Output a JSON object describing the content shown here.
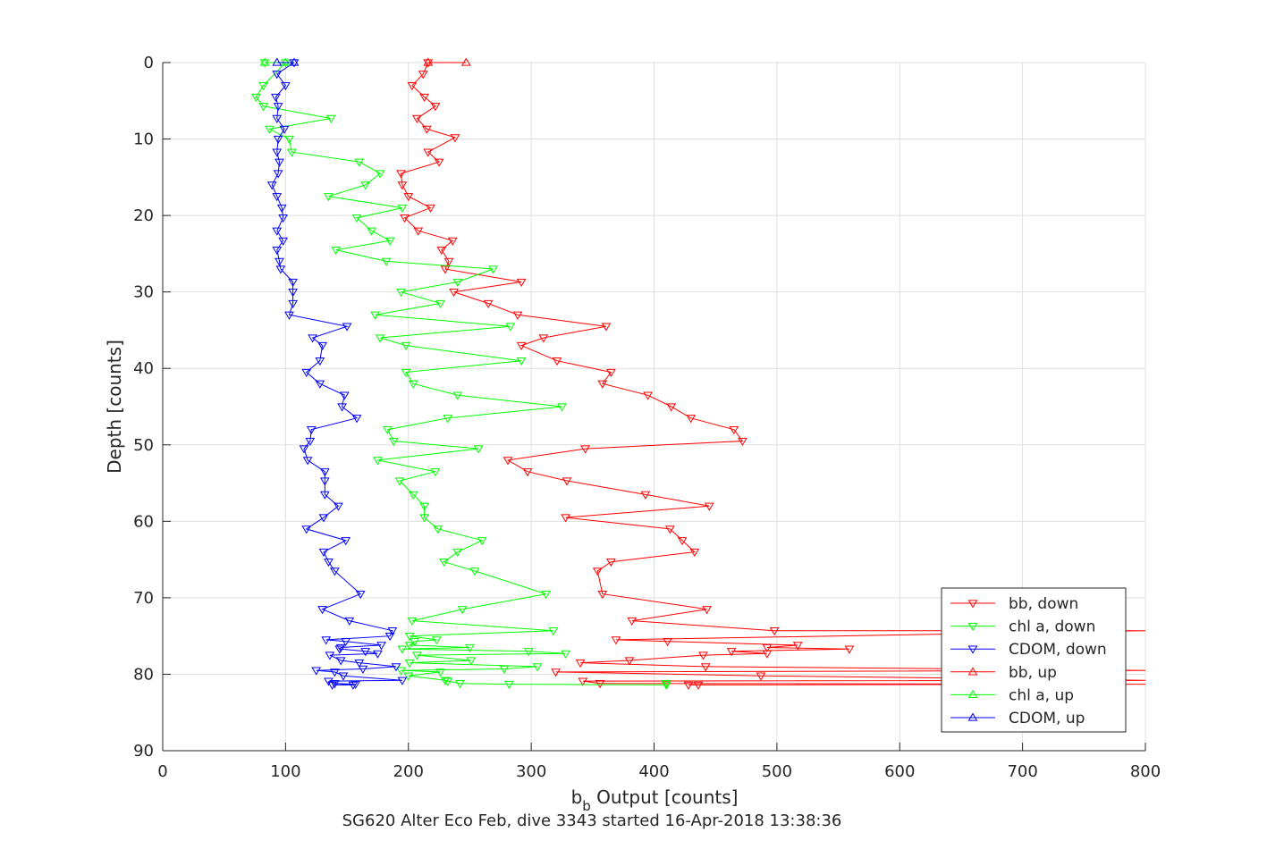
{
  "chart_data": {
    "type": "line",
    "xlabel_main": "b",
    "xlabel_sub": "b",
    "xlabel_rest": " Output [counts]",
    "ylabel": "Depth [counts]",
    "caption": "SG620 Alter Eco Feb, dive 3343 started 16-Apr-2018 13:38:36",
    "xlim": [
      0,
      800
    ],
    "ylim": [
      0,
      90
    ],
    "y_reversed": true,
    "xticks": [
      "0",
      "100",
      "200",
      "300",
      "400",
      "500",
      "600",
      "700",
      "800"
    ],
    "yticks": [
      "0",
      "10",
      "20",
      "30",
      "40",
      "50",
      "60",
      "70",
      "80",
      "90"
    ],
    "grid": true,
    "legend_position": "bottom-right",
    "series": [
      {
        "name": "bb, down",
        "color": "#ff0000",
        "marker": "triangle-down",
        "points": [
          [
            216,
            0
          ],
          [
            212,
            1.5
          ],
          [
            203,
            3
          ],
          [
            213,
            4.5
          ],
          [
            222,
            5.7
          ],
          [
            207,
            7.3
          ],
          [
            215,
            8.7
          ],
          [
            238,
            9.8
          ],
          [
            216,
            11.7
          ],
          [
            225,
            13
          ],
          [
            194,
            14.5
          ],
          [
            195,
            16
          ],
          [
            200,
            17.5
          ],
          [
            218,
            19
          ],
          [
            197,
            20.3
          ],
          [
            208,
            22
          ],
          [
            236,
            23.3
          ],
          [
            227,
            24.5
          ],
          [
            233,
            26
          ],
          [
            230,
            27
          ],
          [
            292,
            28.7
          ],
          [
            237,
            30
          ],
          [
            265,
            31.5
          ],
          [
            289,
            33
          ],
          [
            361,
            34.5
          ],
          [
            310,
            36
          ],
          [
            292,
            37
          ],
          [
            321,
            39
          ],
          [
            365,
            40.5
          ],
          [
            358,
            42
          ],
          [
            395,
            43.5
          ],
          [
            414,
            45
          ],
          [
            430,
            46.5
          ],
          [
            465,
            48
          ],
          [
            472,
            49.5
          ],
          [
            344,
            50.5
          ],
          [
            281,
            52
          ],
          [
            297,
            53.5
          ],
          [
            329,
            54.7
          ],
          [
            393,
            56.5
          ],
          [
            445,
            58
          ],
          [
            328,
            59.5
          ],
          [
            413,
            61
          ],
          [
            423,
            62.5
          ],
          [
            433,
            64
          ],
          [
            365,
            65.3
          ],
          [
            354,
            66.5
          ],
          [
            358,
            69.5
          ],
          [
            443,
            71.5
          ],
          [
            382,
            73
          ],
          [
            498,
            74.3
          ],
          [
            800,
            74.3
          ],
          [
            369,
            75.5
          ],
          [
            411,
            75.7
          ],
          [
            517,
            76.2
          ],
          [
            492,
            76.5
          ],
          [
            559,
            76.7
          ],
          [
            463,
            77
          ],
          [
            492,
            77.3
          ],
          [
            440,
            77.5
          ],
          [
            380,
            78.2
          ],
          [
            340,
            78.5
          ],
          [
            442,
            79
          ],
          [
            800,
            79.5
          ],
          [
            320,
            79.7
          ],
          [
            487,
            80.2
          ],
          [
            800,
            80.8
          ],
          [
            342,
            80.9
          ],
          [
            356,
            81.2
          ],
          [
            800,
            81.3
          ],
          [
            436,
            81.4
          ],
          [
            428,
            81.4
          ]
        ]
      },
      {
        "name": "chl a, down",
        "color": "#00ff00",
        "marker": "triangle-down",
        "points": [
          [
            83,
            0
          ],
          [
            100,
            0
          ],
          [
            82,
            3
          ],
          [
            76,
            4.5
          ],
          [
            82,
            5.7
          ],
          [
            137,
            7.3
          ],
          [
            87,
            8.7
          ],
          [
            103,
            10
          ],
          [
            105,
            11.7
          ],
          [
            160,
            13
          ],
          [
            177,
            14.5
          ],
          [
            165,
            16
          ],
          [
            135,
            17.5
          ],
          [
            195,
            19
          ],
          [
            158,
            20.3
          ],
          [
            170,
            22
          ],
          [
            185,
            23.3
          ],
          [
            141,
            24.5
          ],
          [
            182,
            26
          ],
          [
            269,
            27
          ],
          [
            240,
            28.7
          ],
          [
            194,
            30
          ],
          [
            226,
            31.5
          ],
          [
            173,
            33
          ],
          [
            283,
            34.5
          ],
          [
            177,
            36
          ],
          [
            198,
            37
          ],
          [
            292,
            39
          ],
          [
            198,
            40.5
          ],
          [
            204,
            42
          ],
          [
            240,
            43.5
          ],
          [
            325,
            45
          ],
          [
            232,
            46.5
          ],
          [
            183,
            48
          ],
          [
            188,
            49.5
          ],
          [
            257,
            50.5
          ],
          [
            175,
            52
          ],
          [
            222,
            53.5
          ],
          [
            193,
            54.7
          ],
          [
            204,
            56.5
          ],
          [
            213,
            58
          ],
          [
            213,
            59.5
          ],
          [
            224,
            61
          ],
          [
            260,
            62.5
          ],
          [
            240,
            64
          ],
          [
            229,
            65.3
          ],
          [
            254,
            66.5
          ],
          [
            312,
            69.5
          ],
          [
            244,
            71.5
          ],
          [
            203,
            73
          ],
          [
            318,
            74.3
          ],
          [
            201,
            75
          ],
          [
            223,
            75.5
          ],
          [
            205,
            75.7
          ],
          [
            201,
            76.2
          ],
          [
            250,
            76.5
          ],
          [
            195,
            76.7
          ],
          [
            298,
            77
          ],
          [
            328,
            77.3
          ],
          [
            207,
            77.5
          ],
          [
            251,
            78.2
          ],
          [
            201,
            78.5
          ],
          [
            305,
            79
          ],
          [
            278,
            79.3
          ],
          [
            194,
            79.5
          ],
          [
            226,
            79.7
          ],
          [
            200,
            80.2
          ],
          [
            230,
            80.8
          ],
          [
            232,
            80.9
          ],
          [
            242,
            81.2
          ],
          [
            282,
            81.3
          ],
          [
            410,
            81.4
          ],
          [
            410,
            81.2
          ]
        ]
      },
      {
        "name": "CDOM, down",
        "color": "#0000ff",
        "marker": "triangle-down",
        "points": [
          [
            107,
            0
          ],
          [
            93,
            1.5
          ],
          [
            100,
            3
          ],
          [
            92,
            4.5
          ],
          [
            94,
            5.7
          ],
          [
            93,
            7.3
          ],
          [
            99,
            8.7
          ],
          [
            94,
            10
          ],
          [
            93,
            11.7
          ],
          [
            95,
            13
          ],
          [
            94,
            14.5
          ],
          [
            89,
            16
          ],
          [
            93,
            17.5
          ],
          [
            97,
            19
          ],
          [
            98,
            20.3
          ],
          [
            93,
            22
          ],
          [
            98,
            23.3
          ],
          [
            93,
            24.5
          ],
          [
            95,
            26
          ],
          [
            96,
            27
          ],
          [
            106,
            28.7
          ],
          [
            106,
            30
          ],
          [
            106,
            31.5
          ],
          [
            103,
            33
          ],
          [
            150,
            34.5
          ],
          [
            122,
            36
          ],
          [
            130,
            37
          ],
          [
            128,
            39
          ],
          [
            117,
            40.5
          ],
          [
            128,
            42
          ],
          [
            148,
            43.5
          ],
          [
            146,
            45
          ],
          [
            158,
            46.5
          ],
          [
            121,
            48
          ],
          [
            120,
            49.5
          ],
          [
            115,
            50.5
          ],
          [
            118,
            52
          ],
          [
            132,
            53.5
          ],
          [
            132,
            54.7
          ],
          [
            132,
            56.5
          ],
          [
            143,
            58
          ],
          [
            131,
            59.5
          ],
          [
            117,
            61
          ],
          [
            149,
            62.5
          ],
          [
            131,
            64
          ],
          [
            135,
            65.3
          ],
          [
            140,
            66.5
          ],
          [
            161,
            69.5
          ],
          [
            130,
            71.5
          ],
          [
            152,
            73
          ],
          [
            187,
            74.3
          ],
          [
            185,
            75
          ],
          [
            133,
            75.5
          ],
          [
            149,
            75.7
          ],
          [
            178,
            76.2
          ],
          [
            145,
            76.5
          ],
          [
            144,
            76.7
          ],
          [
            165,
            77
          ],
          [
            175,
            77.3
          ],
          [
            136,
            77.5
          ],
          [
            145,
            78.2
          ],
          [
            160,
            78.5
          ],
          [
            190,
            79
          ],
          [
            163,
            79.3
          ],
          [
            125,
            79.5
          ],
          [
            140,
            79.7
          ],
          [
            147,
            80.2
          ],
          [
            195,
            80.8
          ],
          [
            135,
            80.9
          ],
          [
            140,
            81.2
          ],
          [
            157,
            81.3
          ],
          [
            138,
            81.4
          ],
          [
            155,
            81.4
          ]
        ]
      },
      {
        "name": "bb, up",
        "color": "#ff0000",
        "marker": "triangle-up",
        "points": [
          [
            247,
            0
          ],
          [
            216,
            0
          ]
        ]
      },
      {
        "name": "chl a, up",
        "color": "#00ff00",
        "marker": "triangle-up",
        "points": [
          [
            100,
            0
          ],
          [
            83,
            0
          ]
        ]
      },
      {
        "name": "CDOM, up",
        "color": "#0000ff",
        "marker": "triangle-up",
        "points": [
          [
            107,
            0
          ],
          [
            93,
            0
          ]
        ]
      }
    ]
  }
}
